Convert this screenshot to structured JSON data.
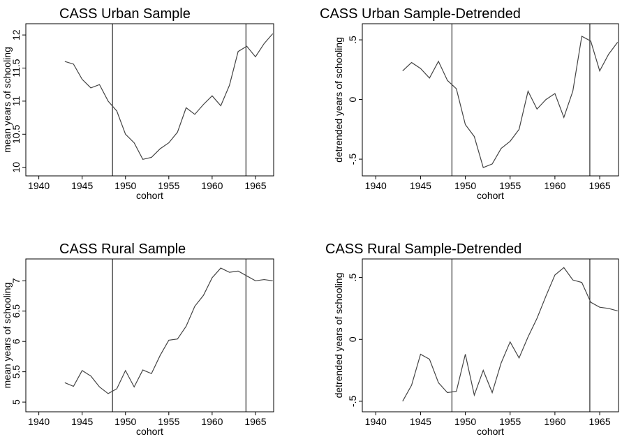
{
  "chart_data": [
    {
      "type": "line",
      "title": "CASS Urban Sample",
      "x_label": "cohort",
      "y_label": "mean years of schooling",
      "x": [
        1943,
        1944,
        1945,
        1946,
        1947,
        1948,
        1949,
        1950,
        1951,
        1952,
        1953,
        1954,
        1955,
        1956,
        1957,
        1958,
        1959,
        1960,
        1961,
        1962,
        1963,
        1964,
        1965,
        1966,
        1967
      ],
      "values": [
        11.6,
        11.56,
        11.33,
        11.2,
        11.25,
        11.0,
        10.85,
        10.5,
        10.37,
        10.12,
        10.15,
        10.28,
        10.37,
        10.53,
        10.9,
        10.8,
        10.95,
        11.08,
        10.93,
        11.24,
        11.75,
        11.83,
        11.67,
        11.87,
        12.02
      ],
      "color": "#444444",
      "vlines": [
        1948.5,
        1963.9
      ],
      "xlim": [
        1938.5,
        1967.1
      ],
      "xticks": [
        1940,
        1945,
        1950,
        1955,
        1960,
        1965
      ],
      "ylim": [
        9.87,
        12.17
      ],
      "yticks": [
        10,
        10.5,
        11,
        11.5,
        12
      ]
    },
    {
      "type": "line",
      "title": "CASS Urban Sample-Detrended",
      "x_label": "cohort",
      "y_label": "detrended years of schooling",
      "x": [
        1943,
        1944,
        1945,
        1946,
        1947,
        1948,
        1949,
        1950,
        1951,
        1952,
        1953,
        1954,
        1955,
        1956,
        1957,
        1958,
        1959,
        1960,
        1961,
        1962,
        1963,
        1964,
        1965,
        1966,
        1967
      ],
      "values": [
        0.24,
        0.31,
        0.26,
        0.18,
        0.32,
        0.16,
        0.09,
        -0.21,
        -0.31,
        -0.57,
        -0.54,
        -0.41,
        -0.35,
        -0.25,
        0.07,
        -0.08,
        0.0,
        0.05,
        -0.15,
        0.07,
        0.53,
        0.49,
        0.24,
        0.38,
        0.48
      ],
      "color": "#444444",
      "vlines": [
        1948.5,
        1963.9
      ],
      "xlim": [
        1938.5,
        1967.1
      ],
      "xticks": [
        1940,
        1945,
        1950,
        1955,
        1960,
        1965
      ],
      "ylim": [
        -0.64,
        0.635
      ],
      "yticks": [
        {
          "value": -0.5,
          "label": "-.5"
        },
        0,
        {
          "value": 0.5,
          "label": ".5"
        }
      ]
    },
    {
      "type": "line",
      "title": "CASS Rural Sample",
      "x_label": "cohort",
      "y_label": "mean years of schooling",
      "x": [
        1943,
        1944,
        1945,
        1946,
        1947,
        1948,
        1949,
        1950,
        1951,
        1952,
        1953,
        1954,
        1955,
        1956,
        1957,
        1958,
        1959,
        1960,
        1961,
        1962,
        1963,
        1964,
        1965,
        1966,
        1967
      ],
      "values": [
        5.32,
        5.26,
        5.52,
        5.43,
        5.25,
        5.14,
        5.22,
        5.52,
        5.25,
        5.53,
        5.47,
        5.77,
        6.02,
        6.04,
        6.25,
        6.58,
        6.76,
        7.05,
        7.21,
        7.14,
        7.16,
        7.08,
        7.0,
        7.02,
        7.0
      ],
      "color": "#444444",
      "vlines": [
        1948.5,
        1963.9
      ],
      "xlim": [
        1938.5,
        1967.1
      ],
      "xticks": [
        1940,
        1945,
        1950,
        1955,
        1960,
        1965
      ],
      "ylim": [
        4.84,
        7.36
      ],
      "yticks": [
        5,
        5.5,
        6,
        6.5,
        7
      ]
    },
    {
      "type": "line",
      "title": "CASS Rural Sample-Detrended",
      "x_label": "cohort",
      "y_label": "detrended years of schooling",
      "x": [
        1943,
        1944,
        1945,
        1946,
        1947,
        1948,
        1949,
        1950,
        1951,
        1952,
        1953,
        1954,
        1955,
        1956,
        1957,
        1958,
        1959,
        1960,
        1961,
        1962,
        1963,
        1964,
        1965,
        1966,
        1967
      ],
      "values": [
        -0.5,
        -0.37,
        -0.12,
        -0.16,
        -0.35,
        -0.43,
        -0.42,
        -0.12,
        -0.45,
        -0.25,
        -0.43,
        -0.19,
        -0.02,
        -0.15,
        0.02,
        0.17,
        0.35,
        0.52,
        0.58,
        0.48,
        0.46,
        0.3,
        0.26,
        0.25,
        0.23
      ],
      "color": "#444444",
      "vlines": [
        1948.5,
        1963.9
      ],
      "xlim": [
        1938.5,
        1967.1
      ],
      "xticks": [
        1940,
        1945,
        1950,
        1955,
        1960,
        1965
      ],
      "ylim": [
        -0.585,
        0.65
      ],
      "yticks": [
        {
          "value": -0.5,
          "label": "-.5"
        },
        0,
        {
          "value": 0.5,
          "label": ".5"
        }
      ]
    }
  ]
}
